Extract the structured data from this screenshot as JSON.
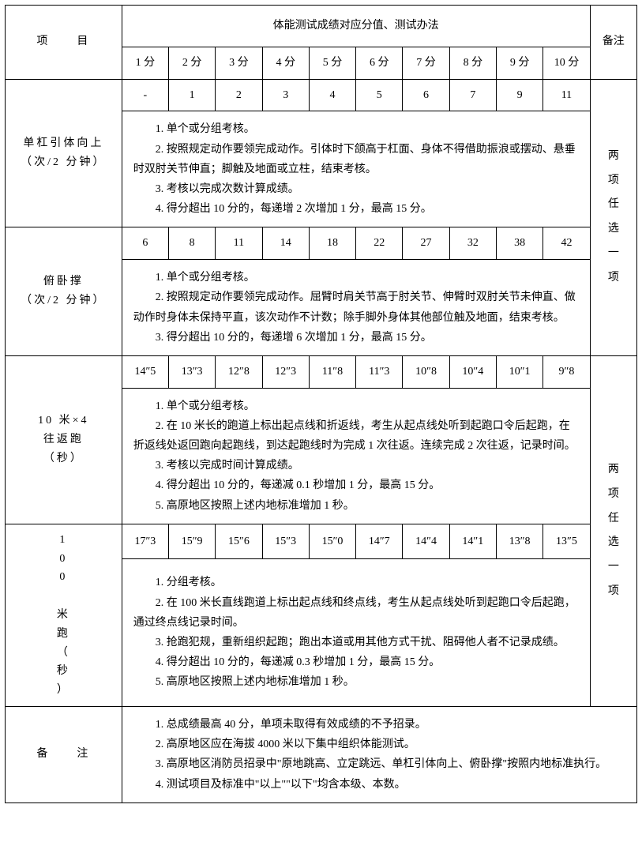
{
  "header": {
    "project_label": "项　　目",
    "scores_title": "体能测试成绩对应分值、测试办法",
    "remark_label": "备注",
    "score_cols": [
      "1 分",
      "2 分",
      "3 分",
      "4 分",
      "5 分",
      "6 分",
      "7 分",
      "8 分",
      "9 分",
      "10 分"
    ]
  },
  "rows": [
    {
      "project": "单杠引体向上\n（次/2 分钟）",
      "values": [
        "-",
        "1",
        "2",
        "3",
        "4",
        "5",
        "6",
        "7",
        "9",
        "11"
      ],
      "desc": [
        "1. 单个或分组考核。",
        "2. 按照规定动作要领完成动作。引体时下颌高于杠面、身体不得借助振浪或摆动、悬垂时双肘关节伸直；脚触及地面或立柱，结束考核。",
        "3. 考核以完成次数计算成绩。",
        "4. 得分超出 10 分的，每递增 2 次增加 1 分，最高 15 分。"
      ]
    },
    {
      "project": "俯卧撑\n（次/2 分钟）",
      "values": [
        "6",
        "8",
        "11",
        "14",
        "18",
        "22",
        "27",
        "32",
        "38",
        "42"
      ],
      "desc": [
        "1. 单个或分组考核。",
        "2. 按照规定动作要领完成动作。屈臂时肩关节高于肘关节、伸臂时双肘关节未伸直、做动作时身体未保持平直，该次动作不计数；除手脚外身体其他部位触及地面，结束考核。",
        "3. 得分超出 10 分的，每递增 6 次增加 1 分，最高 15 分。"
      ]
    },
    {
      "project": "10 米×4\n往返跑\n（秒）",
      "values": [
        "14″5",
        "13″3",
        "12″8",
        "12″3",
        "11″8",
        "11″3",
        "10″8",
        "10″4",
        "10″1",
        "9″8"
      ],
      "desc": [
        "1. 单个或分组考核。",
        "2. 在 10 米长的跑道上标出起点线和折返线，考生从起点线处听到起跑口令后起跑，在折返线处返回跑向起跑线，到达起跑线时为完成 1 次往返。连续完成 2 次往返，记录时间。",
        "3. 考核以完成时间计算成绩。",
        "4. 得分超出 10 分的，每递减 0.1 秒增加 1 分，最高 15 分。",
        "5. 高原地区按照上述内地标准增加 1 秒。"
      ]
    },
    {
      "project": "100 米跑（秒）",
      "values": [
        "17″3",
        "15″9",
        "15″6",
        "15″3",
        "15″0",
        "14″7",
        "14″4",
        "14″1",
        "13″8",
        "13″5"
      ],
      "desc": [
        "1. 分组考核。",
        "2. 在 100 米长直线跑道上标出起点线和终点线，考生从起点线处听到起跑口令后起跑，通过终点线记录时间。",
        "3. 抢跑犯规，重新组织起跑；跑出本道或用其他方式干扰、阻碍他人者不记录成绩。",
        "4. 得分超出 10 分的，每递减 0.3 秒增加 1 分，最高 15 分。",
        "5. 高原地区按照上述内地标准增加 1 秒。"
      ]
    }
  ],
  "group_remark": "两项任选一项",
  "footer": {
    "label": "备　　注",
    "desc": [
      "1. 总成绩最高 40 分，单项未取得有效成绩的不予招录。",
      "2. 高原地区应在海拔 4000 米以下集中组织体能测试。",
      "3. 高原地区消防员招录中\"原地跳高、立定跳远、单杠引体向上、俯卧撑\"按照内地标准执行。",
      "4. 测试项目及标准中\"以上\"\"以下\"均含本级、本数。"
    ]
  }
}
